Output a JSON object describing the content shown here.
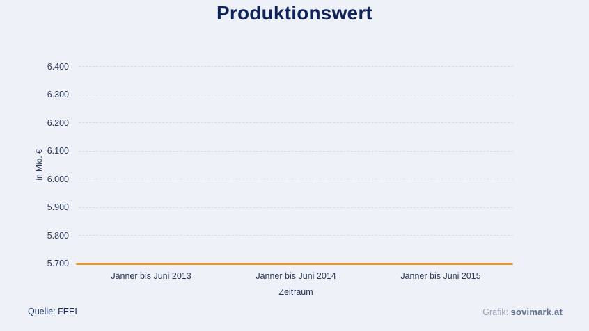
{
  "header": {
    "title": "Produktionswert"
  },
  "chart_data": {
    "type": "line",
    "title": "Produktionswert",
    "categories": [
      "Jänner bis Juni 2013",
      "Jänner bis Juni 2014",
      "Jänner bis Juni 2015"
    ],
    "series": [
      {
        "name": "Produktionswert",
        "values": [
          5700,
          5700,
          5700
        ]
      }
    ],
    "xlabel": "Zeitraum",
    "ylabel": "in Mio. €",
    "ylim": [
      5700,
      6400
    ],
    "ytick_labels": [
      "6.400",
      "6.300",
      "6.200",
      "6.100",
      "6.000",
      "5.900",
      "5.800",
      "5.700"
    ],
    "grid": "horizontal dashed",
    "legend": "none",
    "line_color": "#ee9434"
  },
  "footer": {
    "source_label": "Quelle: FEEI",
    "credit_label": "Grafik: ",
    "credit_brand": "sovimark.at"
  },
  "colors": {
    "background": "#eef1f8",
    "title_text": "#0e2359",
    "axis_text": "#2b3a5c",
    "gridline": "#d6dbe4",
    "series_orange": "#ee9434",
    "credit_label": "#9aa3b5",
    "credit_brand": "#5d7094"
  }
}
